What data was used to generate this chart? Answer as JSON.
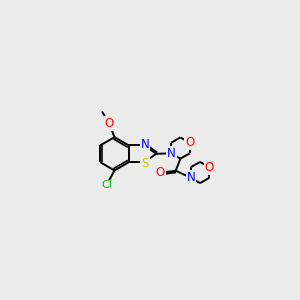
{
  "bg_color": "#ebebeb",
  "bond_color": "#000000",
  "atom_colors": {
    "N": "#0000ff",
    "O": "#ff0000",
    "S": "#cccc00",
    "Cl": "#00bb00",
    "C": "#000000"
  },
  "lw": 1.4,
  "font_size": 8.5
}
